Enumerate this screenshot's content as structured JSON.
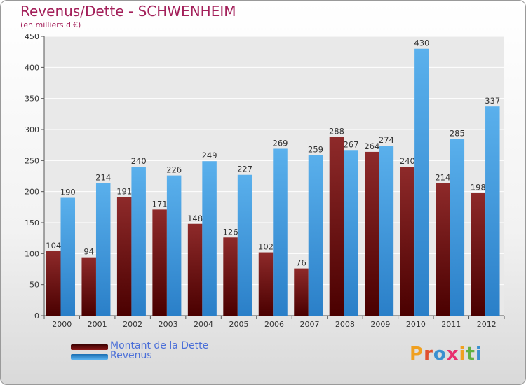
{
  "chart_data": {
    "type": "bar",
    "title": "Revenus/Dette - SCHWENHEIM",
    "subtitle": "(en milliers d'€)",
    "categories": [
      "2000",
      "2001",
      "2002",
      "2003",
      "2004",
      "2005",
      "2006",
      "2007",
      "2008",
      "2009",
      "2010",
      "2011",
      "2012"
    ],
    "series": [
      {
        "name": "Montant de la Dette",
        "color": "#8b1a1a",
        "values": [
          104,
          94,
          191,
          171,
          148,
          126,
          102,
          76,
          288,
          264,
          240,
          214,
          198
        ]
      },
      {
        "name": "Revenus",
        "color": "#3d9ae0",
        "values": [
          190,
          214,
          240,
          226,
          249,
          227,
          269,
          259,
          267,
          274,
          430,
          285,
          337
        ]
      }
    ],
    "ylim": [
      0,
      450
    ],
    "yticks": [
      0,
      50,
      100,
      150,
      200,
      250,
      300,
      350,
      400,
      450
    ],
    "grid": true,
    "legend": "bottom-left"
  },
  "logo": {
    "text": "Proxiti",
    "letter_colors": [
      "#f0a020",
      "#e05030",
      "#3a8fd0",
      "#e83070",
      "#f0a020",
      "#60b040",
      "#3a8fd0"
    ]
  }
}
